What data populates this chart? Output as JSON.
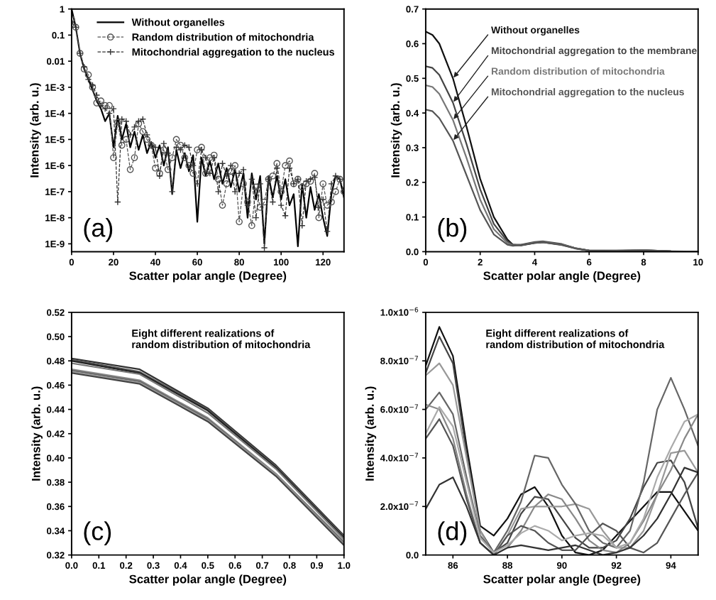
{
  "chart_data": [
    {
      "type": "line",
      "xlabel": "Scatter polar angle (Degree)",
      "ylabel": "Intensity (arb. u.)",
      "log": true,
      "legend": "top right",
      "xlim": [
        0,
        130
      ],
      "xticks": [
        0,
        20,
        40,
        60,
        80,
        100,
        120
      ],
      "ylim": [
        5e-10,
        1
      ],
      "yticks": [
        1,
        0.1,
        0.01,
        {
          "value": 0.001,
          "label": "1E-3"
        },
        {
          "value": 0.0001,
          "label": "1E-4"
        },
        {
          "value": 1e-05,
          "label": "1E-5"
        },
        {
          "value": 1e-06,
          "label": "1E-6"
        },
        {
          "value": 1e-07,
          "label": "1E-7"
        },
        {
          "value": 1e-08,
          "label": "1E-8"
        },
        {
          "value": 1e-09,
          "label": "1E-9"
        }
      ],
      "annotations": [
        "(a)"
      ],
      "x": [
        0,
        2,
        4,
        6,
        8,
        10,
        12,
        14,
        16,
        18,
        20,
        22,
        24,
        26,
        28,
        30,
        32,
        34,
        36,
        38,
        40,
        42,
        44,
        46,
        48,
        50,
        52,
        54,
        56,
        58,
        60,
        62,
        64,
        66,
        68,
        70,
        72,
        74,
        76,
        78,
        80,
        82,
        84,
        86,
        88,
        90,
        92,
        94,
        96,
        98,
        100,
        102,
        104,
        106,
        108,
        110,
        112,
        114,
        116,
        118,
        120,
        122,
        124,
        126,
        128,
        130
      ],
      "series": [
        {
          "name": "Without organelles",
          "color": "#000000",
          "marker": "none",
          "line_style": "solid",
          "values": [
            1,
            0.2,
            0.02,
            0.005,
            0.002,
            0.0008,
            0.0003,
            0.00015,
            5e-05,
            0.0001,
            5e-06,
            8e-05,
            1e-05,
            4e-05,
            5e-06,
            2e-05,
            4e-06,
            1.5e-05,
            3e-06,
            8e-06,
            2e-06,
            6e-06,
            1e-06,
            5e-06,
            8e-08,
            4e-06,
            8e-07,
            3e-06,
            6e-07,
            2.5e-06,
            7e-09,
            2e-06,
            4e-07,
            1.5e-06,
            3e-07,
            1.2e-06,
            2e-07,
            8e-07,
            1.5e-07,
            7e-07,
            1e-07,
            5e-07,
            1e-08,
            5e-07,
            5e-08,
            4e-07,
            1e-09,
            4e-07,
            6e-08,
            4e-07,
            5e-08,
            3e-07,
            3e-08,
            8e-08,
            8e-10,
            2e-07,
            1e-08,
            1.5e-07,
            2e-08,
            8e-08,
            1e-08,
            2e-09,
            8e-08,
            4e-07,
            3e-07,
            6e-08
          ]
        },
        {
          "name": "Random distribution of mitochondria",
          "color": "#555555",
          "marker": "circle",
          "line_style": "dashed",
          "values": [
            0.4,
            0.2,
            0.02,
            0.005,
            0.003,
            0.001,
            0.00025,
            0.0003,
            0.0002,
            0.0002,
            2e-06,
            4.5e-05,
            6e-06,
            1e-05,
            7e-07,
            2e-06,
            4e-05,
            2e-05,
            1e-05,
            6e-06,
            8e-07,
            5e-07,
            4e-06,
            7e-07,
            2e-06,
            1e-05,
            6e-06,
            2e-06,
            1e-06,
            5e-07,
            4e-06,
            5e-06,
            5e-07,
            2e-06,
            2.5e-06,
            3e-07,
            3e-08,
            2e-07,
            6e-07,
            1e-06,
            7e-09,
            2e-07,
            4e-08,
            5e-09,
            1.5e-07,
            2.5e-08,
            4e-08,
            3e-07,
            4e-07,
            1.2e-06,
            1e-07,
            1e-06,
            1.5e-06,
            2e-07,
            3e-07,
            1.5e-07,
            2e-07,
            2.5e-07,
            5e-07,
            1e-08,
            2e-07,
            3e-08,
            4e-08,
            1e-07,
            3e-07,
            1e-07
          ]
        },
        {
          "name": "Mitochondrial aggregation to the nucleus",
          "color": "#333333",
          "marker": "cross",
          "line_style": "dashed",
          "values": [
            0.3,
            0.2,
            0.02,
            0.006,
            0.002,
            0.0012,
            0.0005,
            0.0002,
            0.00015,
            0.0001,
            0.00015,
            4e-08,
            6e-05,
            5e-05,
            1.5e-05,
            3e-05,
            5e-05,
            6e-05,
            1.5e-05,
            6e-06,
            5e-06,
            4e-07,
            7e-06,
            3e-06,
            1e-07,
            5e-06,
            4e-06,
            6e-06,
            5e-06,
            1e-06,
            2e-07,
            4e-06,
            2e-06,
            5e-07,
            2e-06,
            1e-07,
            1.2e-06,
            4e-07,
            1e-06,
            1e-07,
            5e-07,
            7e-07,
            3e-08,
            3e-07,
            1e-08,
            2e-07,
            7e-10,
            3e-07,
            4e-08,
            8e-07,
            3e-08,
            1.2e-08,
            8e-07,
            2e-07,
            3e-07,
            5e-09,
            2.5e-07,
            3e-07,
            3.5e-07,
            2.5e-08,
            5e-08,
            3e-09,
            2e-07,
            4e-07,
            3e-07,
            1e-07
          ]
        }
      ]
    },
    {
      "type": "line",
      "xlabel": "Scatter polar angle (Degree)",
      "ylabel": "Intensity (arb. u.)",
      "xlim": [
        0,
        10
      ],
      "xticks": [
        0,
        2,
        4,
        6,
        8,
        10
      ],
      "ylim": [
        0,
        0.7
      ],
      "yticks": [
        {
          "value": 0,
          "label": "0.0"
        },
        0.1,
        0.2,
        0.3,
        0.4,
        0.5,
        0.6,
        0.7
      ],
      "annotations": [
        "(b)"
      ],
      "x": [
        0,
        0.25,
        0.5,
        1,
        1.5,
        2,
        2.5,
        3,
        3.2,
        3.5,
        4,
        4.3,
        5,
        5.5,
        6,
        7,
        8,
        9,
        10
      ],
      "series": [
        {
          "name": "Without organelles",
          "color": "#111111",
          "values": [
            0.635,
            0.625,
            0.6,
            0.5,
            0.36,
            0.21,
            0.1,
            0.035,
            0.02,
            0.018,
            0.025,
            0.027,
            0.02,
            0.01,
            0.003,
            0.002,
            0.004,
            0.001,
            0.0
          ]
        },
        {
          "name": "Mitochondrial aggregation to the membrane",
          "color": "#444444",
          "values": [
            0.535,
            0.53,
            0.51,
            0.43,
            0.31,
            0.18,
            0.08,
            0.03,
            0.02,
            0.02,
            0.028,
            0.03,
            0.022,
            0.01,
            0.003,
            0.003,
            0.004,
            0.001,
            0.0
          ]
        },
        {
          "name": "Random distribution of mitochondria",
          "color": "#777777",
          "values": [
            0.48,
            0.475,
            0.455,
            0.38,
            0.27,
            0.15,
            0.065,
            0.025,
            0.018,
            0.019,
            0.026,
            0.028,
            0.02,
            0.01,
            0.003,
            0.003,
            0.004,
            0.001,
            0.0
          ]
        },
        {
          "name": "Mitochondrial aggregation to the nucleus",
          "color": "#555555",
          "values": [
            0.41,
            0.405,
            0.385,
            0.32,
            0.22,
            0.12,
            0.05,
            0.02,
            0.017,
            0.019,
            0.025,
            0.027,
            0.019,
            0.009,
            0.003,
            0.002,
            0.003,
            0.001,
            0.0
          ]
        }
      ]
    },
    {
      "type": "line",
      "xlabel": "Scatter polar angle (Degree)",
      "ylabel": "Intensity (arb. u.)",
      "xlim": [
        0,
        1
      ],
      "xticks": [
        {
          "value": 0,
          "label": "0.0"
        },
        0.1,
        0.2,
        0.3,
        0.4,
        0.5,
        0.6,
        0.7,
        0.8,
        0.9,
        {
          "value": 1,
          "label": "1.0"
        }
      ],
      "ylim": [
        0.32,
        0.52
      ],
      "yticks": [
        0.32,
        0.34,
        0.36,
        0.38,
        {
          "value": 0.4,
          "label": "0.40"
        },
        0.42,
        0.44,
        0.46,
        0.48,
        {
          "value": 0.5,
          "label": "0.50"
        },
        0.52
      ],
      "annotations": [
        "(c)",
        "Eight different realizations of\nrandom distribution of mitochondria"
      ],
      "x": [
        0,
        0.25,
        0.5,
        0.75,
        1
      ],
      "series": [
        {
          "color": "#333333",
          "values": [
            0.482,
            0.473,
            0.441,
            0.394,
            0.336
          ]
        },
        {
          "color": "#555555",
          "values": [
            0.481,
            0.471,
            0.44,
            0.393,
            0.335
          ]
        },
        {
          "color": "#222222",
          "values": [
            0.48,
            0.47,
            0.439,
            0.392,
            0.334
          ]
        },
        {
          "color": "#777777",
          "values": [
            0.478,
            0.469,
            0.437,
            0.391,
            0.333
          ]
        },
        {
          "color": "#888888",
          "values": [
            0.473,
            0.464,
            0.433,
            0.387,
            0.331
          ]
        },
        {
          "color": "#666666",
          "values": [
            0.472,
            0.463,
            0.432,
            0.386,
            0.33
          ]
        },
        {
          "color": "#999999",
          "values": [
            0.471,
            0.462,
            0.431,
            0.386,
            0.329
          ]
        },
        {
          "color": "#444444",
          "values": [
            0.47,
            0.461,
            0.43,
            0.385,
            0.328
          ]
        }
      ]
    },
    {
      "type": "line",
      "xlabel": "Scatter polar angle (Degree)",
      "ylabel": "Intensity (arb. u.)",
      "xlim": [
        85,
        95
      ],
      "xticks": [
        86,
        88,
        90,
        92,
        94
      ],
      "ylim": [
        0,
        1e-06
      ],
      "yticks": [
        {
          "value": 0,
          "label": "0.0"
        },
        {
          "value": 2e-07,
          "label": "2.0x10$^{−7}$"
        },
        {
          "value": 4e-07,
          "label": "4.0x10$^{−7}$"
        },
        {
          "value": 6e-07,
          "label": "6.0x10$^{−7}$"
        },
        {
          "value": 8e-07,
          "label": "8.0x10$^{−7}$"
        },
        {
          "value": 1e-06,
          "label": "1.0x10$^{−6}$"
        }
      ],
      "annotations": [
        "(d)",
        "Eight different realizations of\nrandom distribution of mitochondria"
      ],
      "x": [
        85,
        85.5,
        86,
        86.5,
        87,
        87.5,
        88,
        88.5,
        89,
        89.5,
        90,
        90.5,
        91,
        91.5,
        92,
        92.5,
        93,
        93.5,
        94,
        94.5,
        95
      ],
      "series": [
        {
          "color": "#111111",
          "values": [
            7.8e-07,
            9.4e-07,
            8.2e-07,
            4.5e-07,
            1.2e-07,
            8e-08,
            1.5e-07,
            2.5e-07,
            2.8e-07,
            2e-07,
            8e-08,
            1e-08,
            0,
            2e-08,
            8e-08,
            1.4e-07,
            2e-07,
            2.6e-07,
            2.6e-07,
            1.8e-07,
            1e-07
          ]
        },
        {
          "color": "#444444",
          "values": [
            7.5e-07,
            9e-07,
            7.9e-07,
            4.2e-07,
            1e-07,
            1e-08,
            5e-08,
            1.7e-07,
            2.4e-07,
            2.3e-07,
            1.5e-07,
            7e-08,
            3e-08,
            3e-08,
            6e-08,
            1.5e-07,
            2.8e-07,
            3.8e-07,
            3.9e-07,
            3e-07,
            1.1e-07
          ]
        },
        {
          "color": "#999999",
          "values": [
            7.4e-07,
            7.9e-07,
            7e-07,
            4e-07,
            1e-07,
            0,
            8e-08,
            1.9e-07,
            2e-07,
            2e-07,
            2e-07,
            2.1e-07,
            1.9e-07,
            1e-07,
            3e-08,
            3e-08,
            1e-07,
            2.5e-07,
            4.2e-07,
            4.3e-07,
            3.4e-07
          ]
        },
        {
          "color": "#666666",
          "values": [
            6e-07,
            6.7e-07,
            5.8e-07,
            3.2e-07,
            8e-08,
            1e-08,
            1e-07,
            2.2e-07,
            4.1e-07,
            4e-07,
            2.9e-07,
            2.1e-07,
            1e-07,
            5e-08,
            3e-08,
            1e-07,
            3e-07,
            6e-07,
            7.3e-07,
            6e-07,
            4.5e-07
          ]
        },
        {
          "color": "#888888",
          "values": [
            6.2e-07,
            6e-07,
            4.8e-07,
            2.5e-07,
            5e-08,
            0,
            3e-08,
            1e-07,
            2e-07,
            2.5e-07,
            2.3e-07,
            1.5e-07,
            6e-08,
            2e-08,
            1e-08,
            5e-08,
            1.4e-07,
            2.5e-07,
            3.5e-07,
            4.8e-07,
            5.8e-07
          ]
        },
        {
          "color": "#555555",
          "values": [
            4.8e-07,
            5.6e-07,
            4.5e-07,
            2.3e-07,
            5e-08,
            0,
            8e-08,
            1.2e-07,
            1e-07,
            5e-08,
            2e-08,
            2e-08,
            8e-08,
            1.3e-07,
            1e-07,
            3e-08,
            1e-08,
            5e-08,
            1.5e-07,
            2.5e-07,
            3.4e-07
          ]
        },
        {
          "color": "#333333",
          "values": [
            1.9e-07,
            2.9e-07,
            3.2e-07,
            2e-07,
            5e-08,
            0,
            3e-08,
            4e-08,
            3e-08,
            2e-08,
            3e-08,
            4e-08,
            2e-08,
            0,
            1e-08,
            3e-08,
            8e-08,
            1.5e-07,
            2.5e-07,
            3.6e-07,
            3.4e-07
          ]
        },
        {
          "color": "#aaaaaa",
          "values": [
            5e-07,
            6.1e-07,
            5.3e-07,
            3e-07,
            7e-08,
            1e-08,
            4e-08,
            9e-08,
            1.2e-07,
            1e-07,
            6e-08,
            8e-08,
            9e-08,
            8e-08,
            3e-08,
            5e-08,
            1.5e-07,
            3.2e-07,
            4.4e-07,
            5.5e-07,
            5.8e-07
          ]
        }
      ]
    }
  ]
}
